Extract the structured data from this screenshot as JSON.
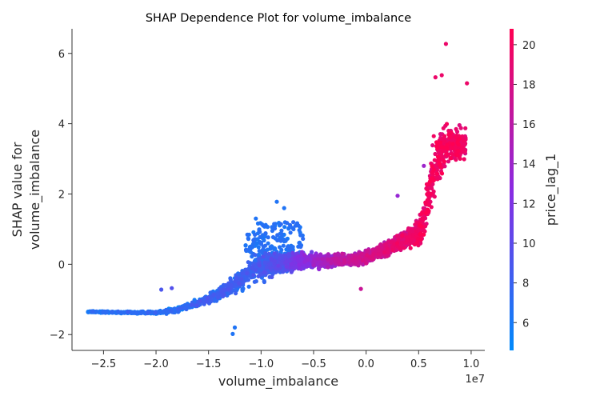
{
  "chart_data": {
    "type": "scatter",
    "title": "SHAP Dependence Plot for volume_imbalance",
    "xlabel": "volume_imbalance",
    "ylabel_lines": [
      "SHAP value for",
      "volume_imbalance"
    ],
    "x_offset_label": "1e7",
    "x_scale_note": "x values in units of 1e7",
    "xlim": [
      -2.8,
      1.13
    ],
    "ylim": [
      -2.45,
      6.7
    ],
    "x_ticks": [
      -2.5,
      -2.0,
      -1.5,
      -1.0,
      -0.5,
      0.0,
      0.5,
      1.0
    ],
    "x_tick_labels": [
      "−2.5",
      "−2.0",
      "−1.5",
      "−1.0",
      "−0.5",
      "0.0",
      "0.5",
      "1.0"
    ],
    "y_ticks": [
      -2,
      0,
      2,
      4,
      6
    ],
    "y_tick_labels": [
      "−2",
      "0",
      "2",
      "4",
      "6"
    ],
    "grid": false,
    "color_feature": "price_lag_1",
    "colorbar": {
      "label": "price_lag_1",
      "range": [
        4.6,
        20.8
      ],
      "ticks": [
        6,
        8,
        10,
        12,
        14,
        16,
        18,
        20
      ],
      "tick_labels": [
        "6",
        "8",
        "10",
        "12",
        "14",
        "16",
        "18",
        "20"
      ],
      "colormap": [
        "#008afb",
        "#8a2be2",
        "#ff0052"
      ]
    },
    "trend": {
      "x": [
        -2.65,
        -2.3,
        -2.0,
        -1.8,
        -1.6,
        -1.4,
        -1.3,
        -1.2,
        -1.1,
        -1.0,
        -0.8,
        -0.6,
        -0.4,
        -0.2,
        0.0,
        0.2,
        0.4,
        0.5,
        0.55,
        0.6,
        0.65,
        0.7,
        0.8,
        0.9
      ],
      "y": [
        -1.35,
        -1.37,
        -1.38,
        -1.3,
        -1.1,
        -0.85,
        -0.65,
        -0.45,
        -0.2,
        -0.05,
        0.05,
        0.1,
        0.1,
        0.12,
        0.2,
        0.45,
        0.75,
        0.9,
        1.2,
        2.0,
        2.8,
        3.2,
        3.4,
        3.4
      ],
      "spread": [
        0.03,
        0.04,
        0.05,
        0.1,
        0.15,
        0.25,
        0.35,
        0.4,
        0.5,
        0.55,
        0.35,
        0.3,
        0.25,
        0.22,
        0.25,
        0.3,
        0.35,
        0.5,
        0.7,
        0.9,
        1.1,
        1.0,
        0.7,
        0.6
      ],
      "color_value": [
        6.0,
        6.0,
        6.2,
        6.5,
        7.0,
        7.5,
        7.6,
        7.5,
        7.6,
        7.8,
        9.0,
        11.5,
        13.5,
        15.5,
        16.5,
        17.5,
        18.5,
        19.0,
        19.5,
        19.5,
        19.5,
        19.5,
        19.5,
        19.5
      ]
    },
    "highlight_points": [
      {
        "x": 0.76,
        "y": 6.27,
        "c": 19.5
      },
      {
        "x": 0.96,
        "y": 5.15,
        "c": 19.5
      },
      {
        "x": 0.72,
        "y": 5.38,
        "c": 19.5
      },
      {
        "x": 0.66,
        "y": 5.32,
        "c": 19.5
      },
      {
        "x": -0.85,
        "y": 1.78,
        "c": 6.5
      },
      {
        "x": -0.78,
        "y": 1.6,
        "c": 6.5
      },
      {
        "x": -1.05,
        "y": 1.3,
        "c": 6.5
      },
      {
        "x": -1.25,
        "y": -1.8,
        "c": 6.5
      },
      {
        "x": -1.27,
        "y": -1.98,
        "c": 6.5
      },
      {
        "x": -1.95,
        "y": -0.72,
        "c": 9.0
      },
      {
        "x": -1.85,
        "y": -0.68,
        "c": 9.5
      },
      {
        "x": -0.05,
        "y": -0.7,
        "c": 17.0
      },
      {
        "x": 0.3,
        "y": 1.95,
        "c": 13.5
      },
      {
        "x": 0.55,
        "y": 2.8,
        "c": 14.0
      }
    ]
  }
}
